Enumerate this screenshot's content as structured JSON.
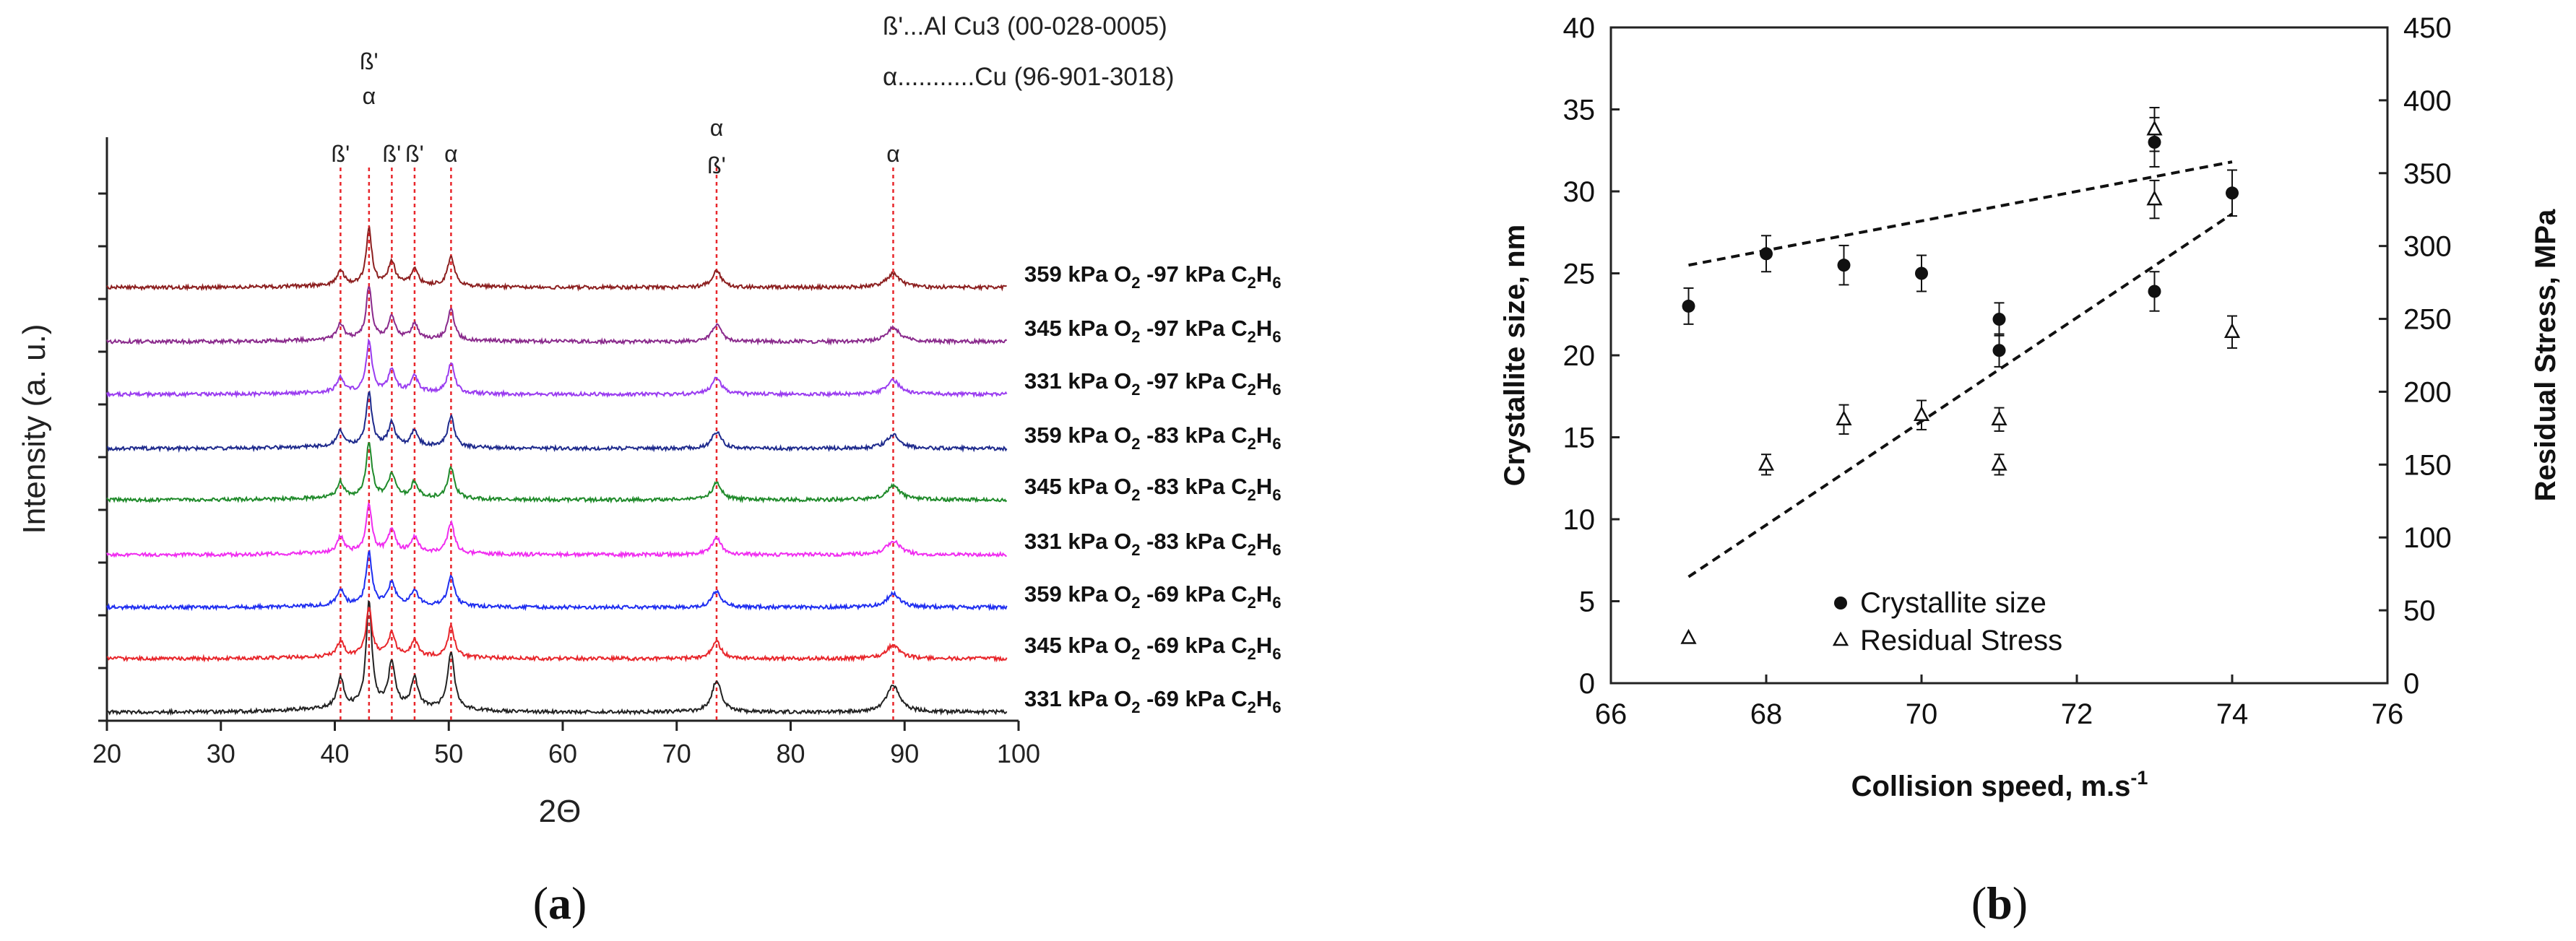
{
  "panels": {
    "a": {
      "caption_open": "(",
      "caption_letter": "a",
      "caption_close": ")"
    },
    "b": {
      "caption_open": "(",
      "caption_letter": "b",
      "caption_close": ")"
    }
  },
  "chart_data": [
    {
      "id": "a",
      "type": "line",
      "title": "",
      "xlabel": "2Θ",
      "ylabel": "Intensity (a. u.)",
      "xlim": [
        20,
        100
      ],
      "xticks": [
        20,
        30,
        40,
        50,
        60,
        70,
        80,
        90,
        100
      ],
      "legend_lines": [
        "ß'...Al Cu3 (00-028-0005)",
        "α...........Cu (96-901-3018)"
      ],
      "phase_markers": [
        {
          "x": 40.5,
          "labels": [
            "ß'"
          ]
        },
        {
          "x": 43.0,
          "labels": [
            "ß'",
            "α"
          ]
        },
        {
          "x": 45.0,
          "labels": [
            "ß'"
          ]
        },
        {
          "x": 47.0,
          "labels": [
            "ß'"
          ]
        },
        {
          "x": 50.2,
          "labels": [
            "α"
          ]
        },
        {
          "x": 73.5,
          "labels": [
            "α",
            "ß'"
          ]
        },
        {
          "x": 89.0,
          "labels": [
            "α"
          ]
        }
      ],
      "peaks": [
        {
          "pos": 40.5,
          "width": 0.35,
          "height": 0.28
        },
        {
          "pos": 43.0,
          "width": 0.3,
          "height": 1.0
        },
        {
          "pos": 45.0,
          "width": 0.35,
          "height": 0.42
        },
        {
          "pos": 47.0,
          "width": 0.35,
          "height": 0.28
        },
        {
          "pos": 50.2,
          "width": 0.35,
          "height": 0.55
        },
        {
          "pos": 73.5,
          "width": 0.5,
          "height": 0.3
        },
        {
          "pos": 89.0,
          "width": 0.7,
          "height": 0.25
        }
      ],
      "series": [
        {
          "label_pre": "331 kPa O",
          "label_sub1": "2",
          "label_mid": " -69 kPa C",
          "label_sub2": "2",
          "label_h": "H",
          "label_sub3": "6",
          "color": "#222222",
          "main_peak": 1.0
        },
        {
          "label_pre": "345 kPa O",
          "label_sub1": "2",
          "label_mid": " -69 kPa C",
          "label_sub2": "2",
          "label_h": "H",
          "label_sub3": "6",
          "color": "#e8262b",
          "main_peak": 0.9
        },
        {
          "label_pre": "359 kPa O",
          "label_sub1": "2",
          "label_mid": " -69 kPa C",
          "label_sub2": "2",
          "label_h": "H",
          "label_sub3": "6",
          "color": "#1f2ef0",
          "main_peak": 0.95
        },
        {
          "label_pre": "331 kPa O",
          "label_sub1": "2",
          "label_mid": " -83 kPa C",
          "label_sub2": "2",
          "label_h": "H",
          "label_sub3": "6",
          "color": "#f02df0",
          "main_peak": 0.85
        },
        {
          "label_pre": "345 kPa O",
          "label_sub1": "2",
          "label_mid": " -83 kPa C",
          "label_sub2": "2",
          "label_h": "H",
          "label_sub3": "6",
          "color": "#1f8a2a",
          "main_peak": 1.0
        },
        {
          "label_pre": "359 kPa O",
          "label_sub1": "2",
          "label_mid": " -83 kPa C",
          "label_sub2": "2",
          "label_h": "H",
          "label_sub3": "6",
          "color": "#1e2a8c",
          "main_peak": 0.95
        },
        {
          "label_pre": "331 kPa O",
          "label_sub1": "2",
          "label_mid": " -97 kPa C",
          "label_sub2": "2",
          "label_h": "H",
          "label_sub3": "6",
          "color": "#9a3cf0",
          "main_peak": 0.9
        },
        {
          "label_pre": "345 kPa O",
          "label_sub1": "2",
          "label_mid": " -97 kPa C",
          "label_sub2": "2",
          "label_h": "H",
          "label_sub3": "6",
          "color": "#8a2a8c",
          "main_peak": 0.95
        },
        {
          "label_pre": "359 kPa O",
          "label_sub1": "2",
          "label_mid": " -97 kPa C",
          "label_sub2": "2",
          "label_h": "H",
          "label_sub3": "6",
          "color": "#8c1f1f",
          "main_peak": 1.0
        }
      ]
    },
    {
      "id": "b",
      "type": "scatter",
      "title": "",
      "xlabel": "Collision speed, m.s",
      "xlabel_sup": "-1",
      "ylabel": "Crystallite size, nm",
      "y2label": "Residual Stress, MPa",
      "xlim": [
        66,
        76
      ],
      "ylim": [
        0,
        40
      ],
      "y2lim": [
        0,
        450
      ],
      "xticks": [
        66,
        68,
        70,
        72,
        74,
        76
      ],
      "yticks": [
        0,
        5,
        10,
        15,
        20,
        25,
        30,
        35,
        40
      ],
      "y2ticks": [
        0,
        50,
        100,
        150,
        200,
        250,
        300,
        350,
        400,
        450
      ],
      "legend": {
        "placement": "bottom-right",
        "entries": [
          "Crystallite size",
          "Residual Stress"
        ]
      },
      "series": [
        {
          "name": "Crystallite size",
          "axis": "left",
          "marker": "filled-circle",
          "points": [
            {
              "x": 67,
              "y": 23.0,
              "err": 1.1
            },
            {
              "x": 68,
              "y": 26.2,
              "err": 1.1
            },
            {
              "x": 69,
              "y": 25.5,
              "err": 1.2
            },
            {
              "x": 70,
              "y": 25.0,
              "err": 1.1
            },
            {
              "x": 71,
              "y": 22.2,
              "err": 1.0
            },
            {
              "x": 71,
              "y": 20.3,
              "err": 1.0
            },
            {
              "x": 73,
              "y": 33.0,
              "err": 1.5
            },
            {
              "x": 73,
              "y": 23.9,
              "err": 1.2
            },
            {
              "x": 74,
              "y": 29.9,
              "err": 1.4
            }
          ],
          "trendline": {
            "x": [
              67,
              74
            ],
            "y": [
              25.5,
              31.8
            ]
          }
        },
        {
          "name": "Residual Stress",
          "axis": "right",
          "marker": "open-triangle",
          "points": [
            {
              "x": 67,
              "y": 31,
              "err": 0
            },
            {
              "x": 68,
              "y": 150,
              "err": 7
            },
            {
              "x": 69,
              "y": 181,
              "err": 10
            },
            {
              "x": 70,
              "y": 184,
              "err": 10
            },
            {
              "x": 71,
              "y": 181,
              "err": 8
            },
            {
              "x": 71,
              "y": 150,
              "err": 7
            },
            {
              "x": 73,
              "y": 380,
              "err": 15
            },
            {
              "x": 73,
              "y": 332,
              "err": 13
            },
            {
              "x": 74,
              "y": 241,
              "err": 11
            }
          ],
          "trendline": {
            "x": [
              67,
              74
            ],
            "y": [
              73,
              322
            ]
          }
        }
      ]
    }
  ]
}
